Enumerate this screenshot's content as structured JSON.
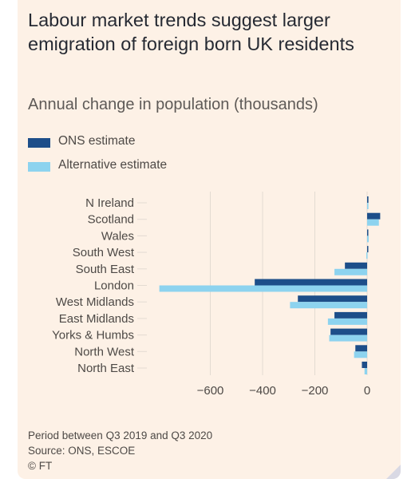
{
  "title": "Labour market trends suggest larger emigration of foreign born UK residents",
  "subtitle": "Annual change in population (thousands)",
  "colors": {
    "ons": "#1d4e89",
    "alt": "#8dd3ef",
    "grid": "#e3dbd2",
    "tick": "#4d4946"
  },
  "footer": {
    "period": "Period between Q3 2019 and Q3 2020",
    "source": "Source: ONS, ESCOE",
    "credit": "© FT"
  },
  "chart_data": {
    "type": "bar",
    "orientation": "horizontal",
    "categories": [
      "N Ireland",
      "Scotland",
      "Wales",
      "South West",
      "South East",
      "London",
      "West Midlands",
      "East Midlands",
      "Yorks & Humbs",
      "North West",
      "North East"
    ],
    "series": [
      {
        "name": "ONS estimate",
        "values": [
          5,
          50,
          4,
          1,
          -85,
          -430,
          -265,
          -125,
          -140,
          -45,
          -20
        ]
      },
      {
        "name": "Alternative estimate",
        "values": [
          5,
          45,
          6,
          -3,
          -125,
          -795,
          -295,
          -150,
          -145,
          -50,
          -10
        ]
      }
    ],
    "xticks": [
      -600,
      -400,
      -200,
      0
    ],
    "xlim": [
      -800,
      50
    ],
    "legend": "top-left",
    "grid": true
  }
}
